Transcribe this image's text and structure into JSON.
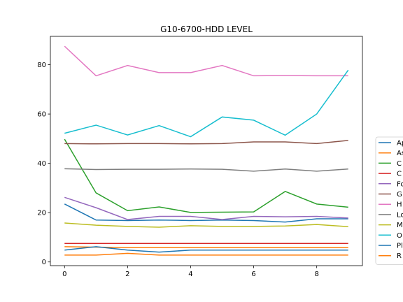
{
  "chart_data": {
    "type": "line",
    "title": "G10-6700-HDD LEVEL",
    "xlabel": "",
    "ylabel": "",
    "xlim": [
      -0.45,
      9.45
    ],
    "ylim": [
      -1.5,
      91.5
    ],
    "x_ticks": [
      0,
      2,
      4,
      6,
      8
    ],
    "y_ticks": [
      0,
      20,
      40,
      60,
      80
    ],
    "grid": false,
    "legend_position": "right",
    "x": [
      0,
      1,
      2,
      3,
      4,
      5,
      6,
      7,
      8,
      9
    ],
    "series": [
      {
        "name": "Ap",
        "color": "#1f77b4",
        "values": [
          23.5,
          17.0,
          16.8,
          17.0,
          16.8,
          17.0,
          16.8,
          16.2,
          17.5,
          17.5
        ]
      },
      {
        "name": "As",
        "color": "#ff7f0e",
        "values": [
          6.2,
          6.0,
          5.8,
          5.8,
          5.8,
          5.8,
          5.8,
          5.8,
          5.8,
          5.8
        ]
      },
      {
        "name": "C",
        "color": "#2ca02c",
        "values": [
          49.8,
          28.0,
          20.8,
          22.3,
          20.1,
          20.2,
          20.3,
          28.6,
          23.5,
          22.2
        ]
      },
      {
        "name": "C",
        "color": "#d62728",
        "values": [
          7.5,
          7.5,
          7.5,
          7.5,
          7.5,
          7.5,
          7.5,
          7.5,
          7.5,
          7.5
        ]
      },
      {
        "name": "Fo",
        "color": "#9467bd",
        "values": [
          26.2,
          22.0,
          17.2,
          18.5,
          18.5,
          17.2,
          18.5,
          18.3,
          18.5,
          17.8
        ]
      },
      {
        "name": "G",
        "color": "#8c564b",
        "values": [
          48.0,
          47.9,
          48.0,
          48.0,
          47.9,
          48.0,
          48.7,
          48.7,
          48.0,
          49.3
        ]
      },
      {
        "name": "H",
        "color": "#e377c2",
        "values": [
          87.5,
          75.5,
          79.7,
          76.8,
          76.8,
          79.7,
          75.5,
          75.6,
          75.5,
          75.5
        ]
      },
      {
        "name": "Lo",
        "color": "#7f7f7f",
        "values": [
          37.8,
          37.5,
          37.6,
          37.6,
          37.7,
          37.6,
          36.8,
          37.7,
          36.8,
          37.7
        ]
      },
      {
        "name": "M",
        "color": "#bcbd22",
        "values": [
          15.8,
          14.9,
          14.4,
          14.1,
          14.7,
          14.4,
          14.4,
          14.6,
          15.2,
          14.3
        ]
      },
      {
        "name": "O",
        "color": "#17becf",
        "values": [
          52.2,
          55.5,
          51.5,
          55.3,
          50.8,
          58.8,
          57.5,
          51.4,
          60.0,
          77.8
        ]
      },
      {
        "name": "Pl",
        "color": "#1f77b4",
        "values": [
          4.8,
          6.2,
          4.8,
          4.0,
          4.8,
          4.8,
          4.8,
          4.8,
          4.8,
          4.8
        ]
      },
      {
        "name": "R",
        "color": "#ff7f0e",
        "values": [
          2.8,
          2.8,
          3.5,
          2.8,
          2.8,
          2.8,
          2.8,
          2.8,
          2.8,
          2.8
        ]
      }
    ]
  }
}
